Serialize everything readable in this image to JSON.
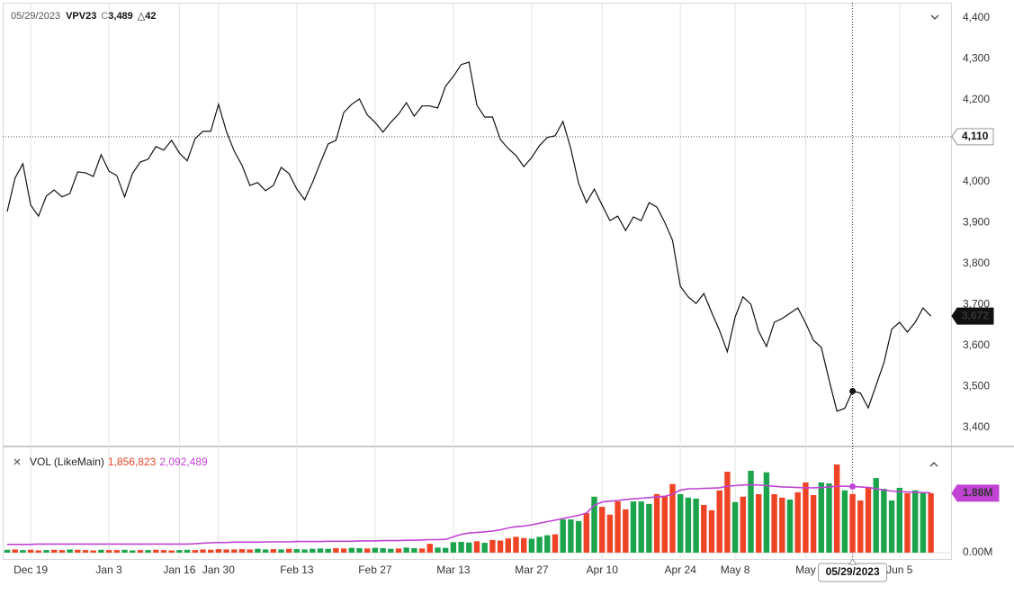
{
  "chart_data": [
    {
      "type": "line",
      "crosshair": "05/29/2023",
      "header": {
        "symbol": "VPV23",
        "close_prefix": "C",
        "close": {
          "value": 3489,
          "label": "3,489"
        },
        "change": "△42"
      },
      "color": "#111111",
      "categories": [
        null,
        null,
        null,
        "Dec 19",
        null,
        null,
        null,
        null,
        null,
        null,
        null,
        null,
        null,
        "Jan 3",
        null,
        null,
        null,
        null,
        null,
        null,
        null,
        null,
        "Jan 16",
        null,
        null,
        null,
        null,
        "Jan 30",
        null,
        null,
        null,
        null,
        null,
        null,
        null,
        null,
        null,
        "Feb 13",
        null,
        null,
        null,
        null,
        null,
        null,
        null,
        null,
        null,
        "Feb 27",
        null,
        null,
        null,
        null,
        null,
        null,
        null,
        null,
        null,
        "Mar 13",
        null,
        null,
        null,
        null,
        null,
        null,
        null,
        null,
        null,
        "Mar 27",
        null,
        null,
        null,
        null,
        null,
        null,
        null,
        null,
        "Apr 10",
        null,
        null,
        null,
        null,
        null,
        null,
        null,
        null,
        null,
        "Apr 24",
        null,
        null,
        null,
        null,
        null,
        null,
        "May 8",
        null,
        null,
        null,
        null,
        null,
        null,
        null,
        null,
        "May",
        null,
        null,
        null,
        null,
        null,
        "05/29/2023",
        null,
        null,
        null,
        null,
        null,
        "Jun 5",
        null,
        null,
        null,
        null
      ],
      "values": [
        3927,
        4009,
        4044,
        3943,
        3916,
        3965,
        3980,
        3963,
        3971,
        4024,
        4022,
        4013,
        4066,
        4026,
        4015,
        3963,
        4020,
        4048,
        4055,
        4086,
        4077,
        4101,
        4070,
        4051,
        4105,
        4123,
        4123,
        4189,
        4123,
        4075,
        4040,
        3991,
        3998,
        3978,
        3991,
        4035,
        4020,
        3982,
        3956,
        3998,
        4046,
        4092,
        4101,
        4169,
        4189,
        4202,
        4163,
        4145,
        4121,
        4145,
        4165,
        4193,
        4160,
        4185,
        4185,
        4180,
        4233,
        4257,
        4286,
        4292,
        4187,
        4158,
        4158,
        4103,
        4081,
        4064,
        4037,
        4059,
        4088,
        4108,
        4112,
        4147,
        4081,
        3996,
        3949,
        3982,
        3943,
        3905,
        3916,
        3881,
        3914,
        3905,
        3949,
        3938,
        3901,
        3857,
        3745,
        3719,
        3703,
        3727,
        3681,
        3637,
        3585,
        3670,
        3719,
        3701,
        3635,
        3598,
        3657,
        3666,
        3679,
        3692,
        3655,
        3613,
        3596,
        3516,
        3440,
        3447,
        3489,
        3484,
        3448,
        3503,
        3558,
        3640,
        3657,
        3633,
        3657,
        3692,
        3672
      ],
      "ylim": [
        3356,
        4437
      ],
      "yticks": [
        {
          "value": 3400,
          "label": "3,400"
        },
        {
          "value": 3500,
          "label": "3,500"
        },
        {
          "value": 3600,
          "label": "3,600"
        },
        {
          "value": 3700,
          "label": "3,700"
        },
        {
          "value": 3800,
          "label": "3,800"
        },
        {
          "value": 3900,
          "label": "3,900"
        },
        {
          "value": 4000,
          "label": "4,000"
        },
        {
          "value": 4100,
          "label": "4,100"
        },
        {
          "value": 4200,
          "label": "4,200"
        },
        {
          "value": 4300,
          "label": "4,300"
        },
        {
          "value": 4400,
          "label": "4,400"
        }
      ],
      "reference": {
        "value": 4110,
        "label": "4,110"
      },
      "last_label": {
        "value": 3672,
        "label": "3,672"
      },
      "grid": true
    },
    {
      "type": "bar",
      "title": "VOL (LikeMain)",
      "colors": {
        "up": "#1ba44b",
        "down": "#ee4425"
      },
      "values": [
        0.09,
        0.1,
        0.08,
        0.09,
        0.07,
        0.08,
        0.09,
        0.08,
        0.1,
        0.09,
        0.08,
        0.07,
        0.09,
        0.08,
        0.08,
        0.09,
        0.07,
        0.08,
        0.08,
        0.09,
        0.08,
        0.07,
        0.08,
        0.09,
        0.08,
        0.1,
        0.09,
        0.11,
        0.1,
        0.1,
        0.11,
        0.1,
        0.12,
        0.1,
        0.11,
        0.1,
        0.12,
        0.11,
        0.1,
        0.12,
        0.13,
        0.12,
        0.14,
        0.13,
        0.15,
        0.14,
        0.13,
        0.15,
        0.14,
        0.12,
        0.13,
        0.16,
        0.14,
        0.13,
        0.28,
        0.16,
        0.15,
        0.33,
        0.34,
        0.32,
        0.36,
        0.31,
        0.4,
        0.38,
        0.45,
        0.5,
        0.46,
        0.44,
        0.5,
        0.55,
        0.58,
        1.05,
        1.05,
        1.0,
        1.25,
        1.77,
        1.45,
        1.2,
        1.62,
        1.37,
        1.62,
        1.62,
        1.54,
        1.85,
        1.8,
        2.17,
        1.85,
        1.74,
        1.71,
        1.51,
        1.34,
        1.97,
        2.56,
        1.6,
        1.77,
        2.59,
        1.85,
        2.54,
        1.85,
        1.74,
        1.68,
        1.91,
        2.22,
        1.82,
        2.22,
        2.19,
        2.79,
        1.97,
        1.856823,
        1.65,
        2.08,
        2.36,
        2.02,
        1.65,
        2.05,
        1.88,
        1.97,
        1.88,
        1.88
      ],
      "bar_colors": [
        "up",
        "down",
        "up",
        "down",
        "down",
        "up",
        "down",
        "down",
        "up",
        "down",
        "down",
        "down",
        "up",
        "down",
        "down",
        "up",
        "up",
        "down",
        "up",
        "down",
        "down",
        "down",
        "up",
        "up",
        "down",
        "down",
        "down",
        "down",
        "down",
        "down",
        "down",
        "down",
        "up",
        "up",
        "down",
        "up",
        "down",
        "up",
        "up",
        "up",
        "up",
        "up",
        "down",
        "down",
        "up",
        "up",
        "down",
        "up",
        "up",
        "up",
        "down",
        "up",
        "up",
        "down",
        "down",
        "up",
        "up",
        "up",
        "up",
        "up",
        "down",
        "up",
        "down",
        "down",
        "down",
        "down",
        "down",
        "up",
        "up",
        "up",
        "down",
        "up",
        "up",
        "up",
        "down",
        "up",
        "down",
        "down",
        "down",
        "down",
        "up",
        "up",
        "up",
        "down",
        "down",
        "down",
        "up",
        "up",
        "up",
        "down",
        "down",
        "down",
        "down",
        "up",
        "down",
        "up",
        "down",
        "up",
        "down",
        "down",
        "up",
        "down",
        "down",
        "down",
        "up",
        "up",
        "down",
        "up",
        "down",
        "down",
        "down",
        "up",
        "up",
        "up",
        "up",
        "down",
        "up",
        "up",
        "down"
      ],
      "ma": {
        "color": "#c043d4",
        "values": [
          0.26,
          0.26,
          0.26,
          0.26,
          0.27,
          0.27,
          0.27,
          0.27,
          0.27,
          0.27,
          0.27,
          0.27,
          0.27,
          0.27,
          0.27,
          0.27,
          0.27,
          0.27,
          0.27,
          0.27,
          0.27,
          0.27,
          0.27,
          0.27,
          0.28,
          0.3,
          0.31,
          0.32,
          0.32,
          0.33,
          0.33,
          0.33,
          0.33,
          0.34,
          0.34,
          0.34,
          0.34,
          0.35,
          0.35,
          0.35,
          0.35,
          0.36,
          0.36,
          0.36,
          0.36,
          0.37,
          0.37,
          0.37,
          0.38,
          0.38,
          0.38,
          0.39,
          0.39,
          0.4,
          0.41,
          0.41,
          0.42,
          0.5,
          0.58,
          0.62,
          0.64,
          0.66,
          0.68,
          0.72,
          0.78,
          0.82,
          0.84,
          0.88,
          0.93,
          0.98,
          1.03,
          1.08,
          1.13,
          1.18,
          1.25,
          1.5,
          1.6,
          1.63,
          1.65,
          1.68,
          1.7,
          1.72,
          1.74,
          1.76,
          1.78,
          1.85,
          1.98,
          2.02,
          2.02,
          2.03,
          2.04,
          2.05,
          2.1,
          2.12,
          2.14,
          2.15,
          2.14,
          2.12,
          2.1,
          2.08,
          2.07,
          2.06,
          2.05,
          2.05,
          2.06,
          2.08,
          2.1,
          2.1,
          2.092489,
          2.08,
          2.06,
          2.02,
          1.98,
          1.95,
          1.93,
          1.92,
          1.91,
          1.9,
          1.89
        ]
      },
      "readout": {
        "volume": {
          "value": 1.856823,
          "label": "1,856,823"
        },
        "ma": {
          "value": 2.092489,
          "label": "2,092,489"
        }
      },
      "ylim": [
        -0.23,
        3.33
      ],
      "yticks": [
        {
          "value": 0,
          "label": "0.00M"
        }
      ],
      "last_label": {
        "value": 1.88,
        "label": "1.88M"
      }
    }
  ]
}
